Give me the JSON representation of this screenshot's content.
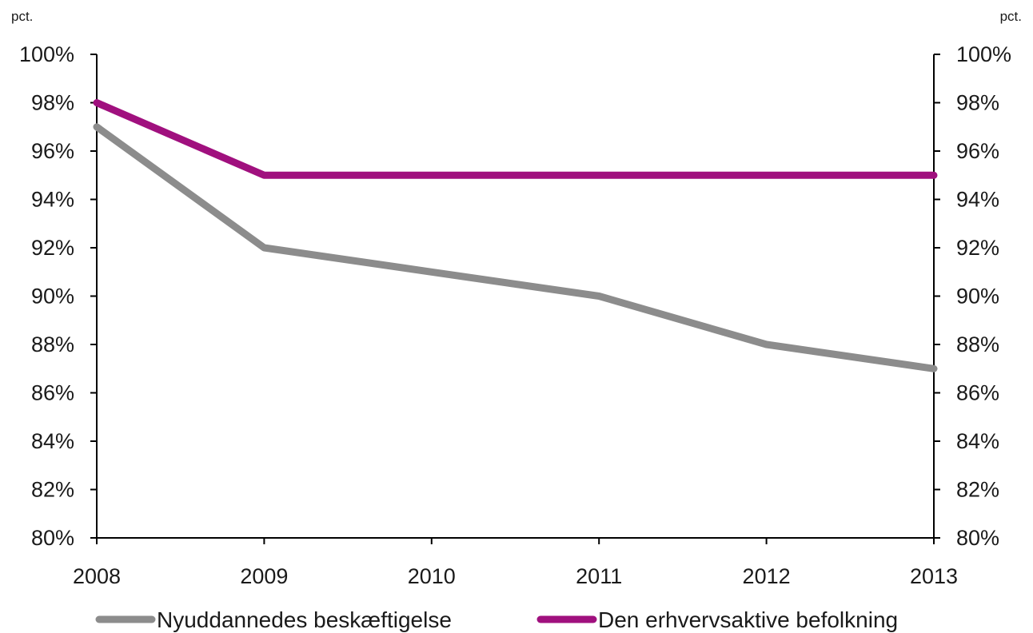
{
  "chart_data": {
    "type": "line",
    "title": "",
    "xlabel": "",
    "ylabel": "",
    "y_unit_left": "pct.",
    "y_unit_right": "pct.",
    "x": [
      "2008",
      "2009",
      "2010",
      "2011",
      "2012",
      "2013"
    ],
    "ylim": [
      80,
      100
    ],
    "yticks": [
      80,
      82,
      84,
      86,
      88,
      90,
      92,
      94,
      96,
      98,
      100
    ],
    "ytick_labels": [
      "80%",
      "82%",
      "84%",
      "86%",
      "88%",
      "90%",
      "92%",
      "94%",
      "96%",
      "98%",
      "100%"
    ],
    "grid": false,
    "legend_position": "bottom",
    "series": [
      {
        "name": "Nyuddannedes beskæftigelse",
        "color": "#8c8c8c",
        "values": [
          97,
          92,
          91,
          90,
          88,
          87
        ]
      },
      {
        "name": "Den erhvervsaktive befolkning",
        "color": "#a0107e",
        "values": [
          98,
          95,
          95,
          95,
          95,
          95
        ]
      }
    ]
  }
}
